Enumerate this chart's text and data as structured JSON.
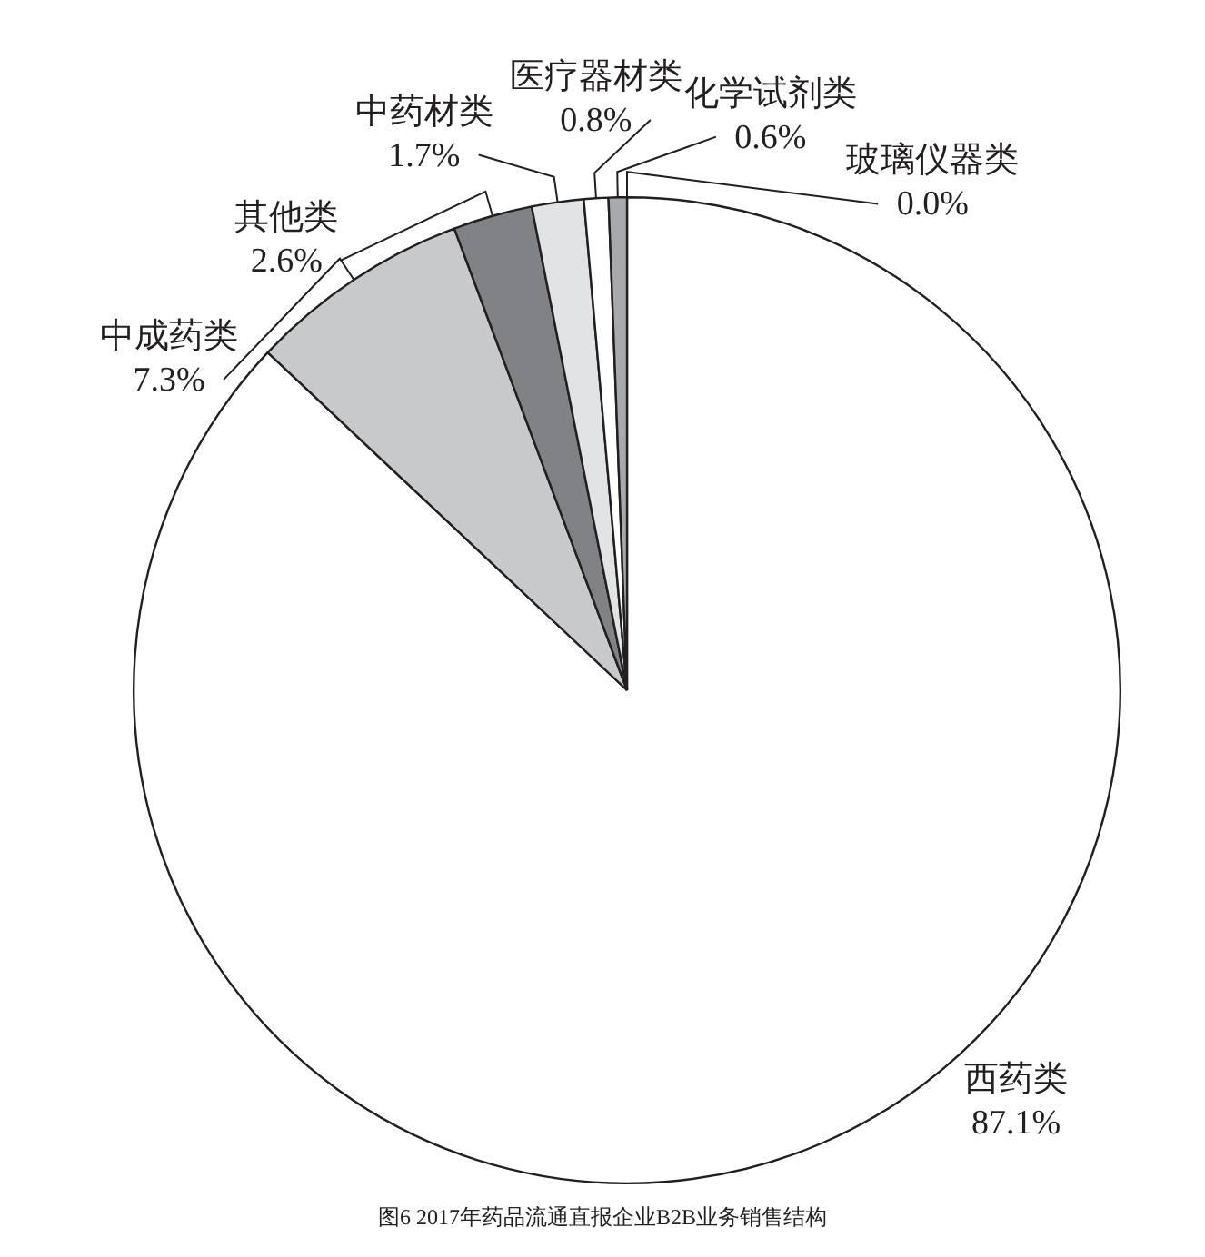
{
  "chart_data": {
    "type": "pie",
    "categories": [
      "西药类",
      "中成药类",
      "其他类",
      "中药材类",
      "医疗器材类",
      "化学试剂类",
      "玻璃仪器类"
    ],
    "values": [
      87.1,
      7.3,
      2.6,
      1.7,
      0.8,
      0.6,
      0.0
    ],
    "value_labels": [
      "87.1%",
      "7.3%",
      "2.6%",
      "1.7%",
      "0.8%",
      "0.6%",
      "0.0%"
    ],
    "colors": [
      "#ffffff",
      "#c8c9cb",
      "#808285",
      "#e2e3e4",
      "#ffffff",
      "#a7a9ac",
      "#8a8c8e"
    ],
    "annotations": [
      "图6 2017年药品流通直报企业B2B业务销售结构"
    ]
  }
}
